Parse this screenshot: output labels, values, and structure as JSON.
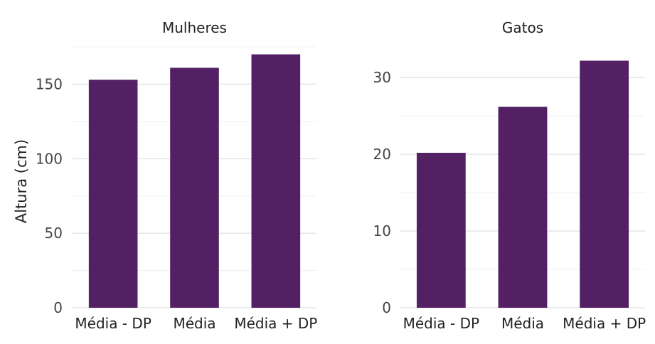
{
  "chart_data": {
    "type": "bar",
    "ylabel": "Altura (cm)",
    "bar_color": "#532063",
    "panels": [
      {
        "title": "Mulheres",
        "categories": [
          "Média - DP",
          "Média",
          "Média + DP"
        ],
        "values": [
          153,
          161,
          170
        ],
        "ylim": [
          0,
          175
        ],
        "yticks": [
          0,
          50,
          100,
          150
        ],
        "yminor": [
          25,
          75,
          125,
          175
        ]
      },
      {
        "title": "Gatos",
        "categories": [
          "Média - DP",
          "Média",
          "Média + DP"
        ],
        "values": [
          20.2,
          26.2,
          32.2
        ],
        "ylim": [
          0,
          34
        ],
        "yticks": [
          0,
          10,
          20,
          30
        ],
        "yminor": [
          5,
          15,
          25
        ]
      }
    ]
  }
}
